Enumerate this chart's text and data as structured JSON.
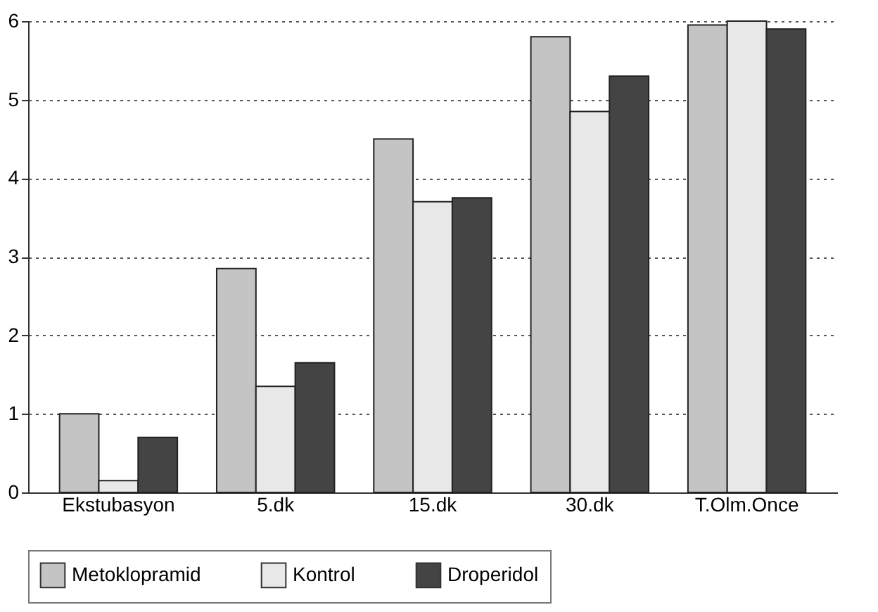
{
  "chart_data": {
    "type": "bar",
    "categories": [
      "Ekstubasyon",
      "5.dk",
      "15.dk",
      "30.dk",
      "T.Olm.Once"
    ],
    "series": [
      {
        "name": "Metoklopramid",
        "color": "#c4c4c4",
        "values": [
          1.0,
          2.85,
          4.5,
          5.8,
          5.95
        ]
      },
      {
        "name": "Kontrol",
        "color": "#e8e8e8",
        "values": [
          0.15,
          1.35,
          3.7,
          4.85,
          6.0
        ]
      },
      {
        "name": "Droperidol",
        "color": "#444444",
        "values": [
          0.7,
          1.65,
          3.75,
          5.3,
          5.9
        ]
      }
    ],
    "ylim": [
      0,
      6
    ],
    "yticks": [
      0,
      1,
      2,
      3,
      4,
      5,
      6
    ],
    "grid": "y",
    "legend": "bottom"
  }
}
